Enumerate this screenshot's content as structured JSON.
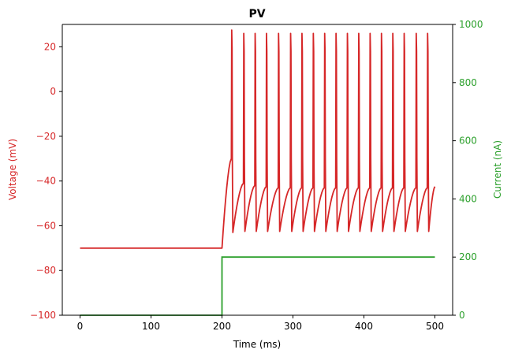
{
  "chart_data": {
    "type": "line",
    "title": "PV",
    "xlabel": "Time (ms)",
    "ylabel_left": "Voltage (mV)",
    "ylabel_right": "Current (nA)",
    "xlim": [
      -25,
      525
    ],
    "ylim_left": [
      -100,
      30
    ],
    "ylim_right": [
      0,
      1000
    ],
    "x_ticks": [
      0,
      100,
      200,
      300,
      400,
      500
    ],
    "y_ticks_left": [
      20,
      0,
      -20,
      -40,
      -60,
      -80,
      -100
    ],
    "y_ticks_right": [
      0,
      200,
      400,
      600,
      800,
      1000
    ],
    "grid": false,
    "colors": {
      "voltage": "#d62728",
      "current": "#2ca02c",
      "axis": "#000000"
    },
    "series": [
      {
        "axis": "left",
        "resting_mV": -70,
        "stim_onset_ms": 200,
        "end_ms": 500,
        "end_mV": -42.5,
        "spike_times_ms": [
          214,
          231,
          247,
          263,
          280,
          297,
          313,
          329,
          345,
          361,
          377,
          393,
          409,
          425,
          441,
          457,
          474,
          490
        ],
        "spike_peaks_mV": [
          27.5,
          26.0,
          26.0,
          26.0,
          26.0,
          26.0,
          26.0,
          26.0,
          26.0,
          26.0,
          26.0,
          26.0,
          26.0,
          26.0,
          26.0,
          26.0,
          26.0,
          26.0
        ],
        "spike_thresholds_mV": [
          -30,
          -41,
          -42,
          -42.5,
          -43,
          -43,
          -43,
          -43,
          -43,
          -43,
          -43,
          -43,
          -43,
          -43,
          -43,
          -43,
          -43,
          -43
        ],
        "trough_mV": [
          -63,
          -62.5,
          -62.5,
          -62.5,
          -62.5,
          -62.5,
          -62.5,
          -62.5,
          -62.5,
          -62.5,
          -62.5,
          -62.5,
          -62.5,
          -62.5,
          -62.5,
          -62.5,
          -62.5,
          -62.5
        ]
      },
      {
        "axis": "right",
        "x": [
          0,
          200,
          200,
          500
        ],
        "values": [
          0,
          0,
          200,
          200
        ]
      }
    ]
  }
}
